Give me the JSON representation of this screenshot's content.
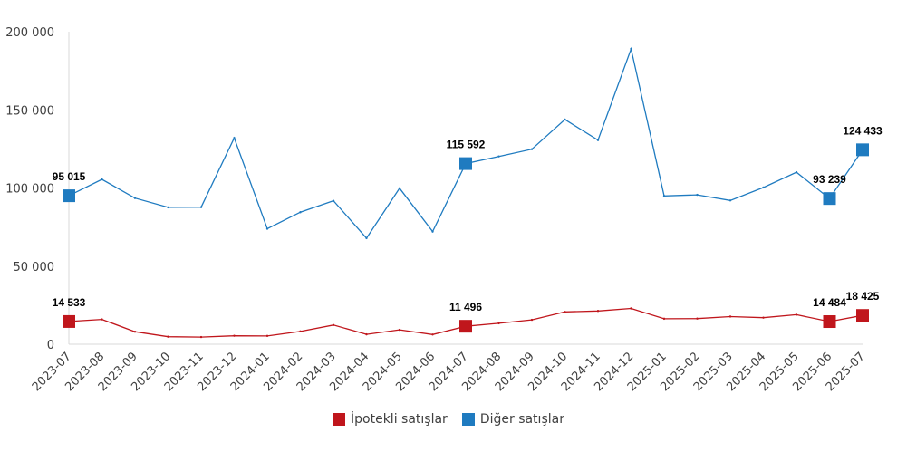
{
  "chart_data": {
    "type": "line",
    "x": [
      "2023-07",
      "2023-08",
      "2023-09",
      "2023-10",
      "2023-11",
      "2023-12",
      "2024-01",
      "2024-02",
      "2024-03",
      "2024-04",
      "2024-05",
      "2024-06",
      "2024-07",
      "2024-08",
      "2024-09",
      "2024-10",
      "2024-11",
      "2024-12",
      "2025-01",
      "2025-02",
      "2025-03",
      "2025-04",
      "2025-05",
      "2025-06",
      "2025-07"
    ],
    "ylim": [
      0,
      200000
    ],
    "yticks": [
      0,
      50000,
      100000,
      150000,
      200000
    ],
    "ytick_labels": [
      "0",
      "50 000",
      "100 000",
      "150 000",
      "200 000"
    ],
    "grid": false,
    "legend_position": "bottom",
    "series": [
      {
        "name": "İpotekli satışlar",
        "color": "#c0161c",
        "values": [
          14533,
          15900,
          8000,
          4800,
          4600,
          5400,
          5300,
          8200,
          12300,
          6300,
          9200,
          6200,
          11496,
          13400,
          15600,
          20700,
          21300,
          22900,
          16300,
          16400,
          17700,
          17000,
          18900,
          14484,
          18425
        ],
        "labels": [
          {
            "index": 0,
            "text": "14 533"
          },
          {
            "index": 12,
            "text": "11 496"
          },
          {
            "index": 23,
            "text": "14 484"
          },
          {
            "index": 24,
            "text": "18 425"
          }
        ]
      },
      {
        "name": "Diğer satışlar",
        "color": "#1f7bc0",
        "values": [
          95015,
          105500,
          93500,
          87600,
          87700,
          132000,
          73900,
          84500,
          91800,
          67900,
          99800,
          72100,
          115592,
          120200,
          124800,
          143800,
          130600,
          189000,
          94900,
          95600,
          92000,
          100300,
          110100,
          93239,
          124433
        ],
        "labels": [
          {
            "index": 0,
            "text": "95 015"
          },
          {
            "index": 12,
            "text": "115 592"
          },
          {
            "index": 23,
            "text": "93 239"
          },
          {
            "index": 24,
            "text": "124 433"
          }
        ]
      }
    ]
  }
}
